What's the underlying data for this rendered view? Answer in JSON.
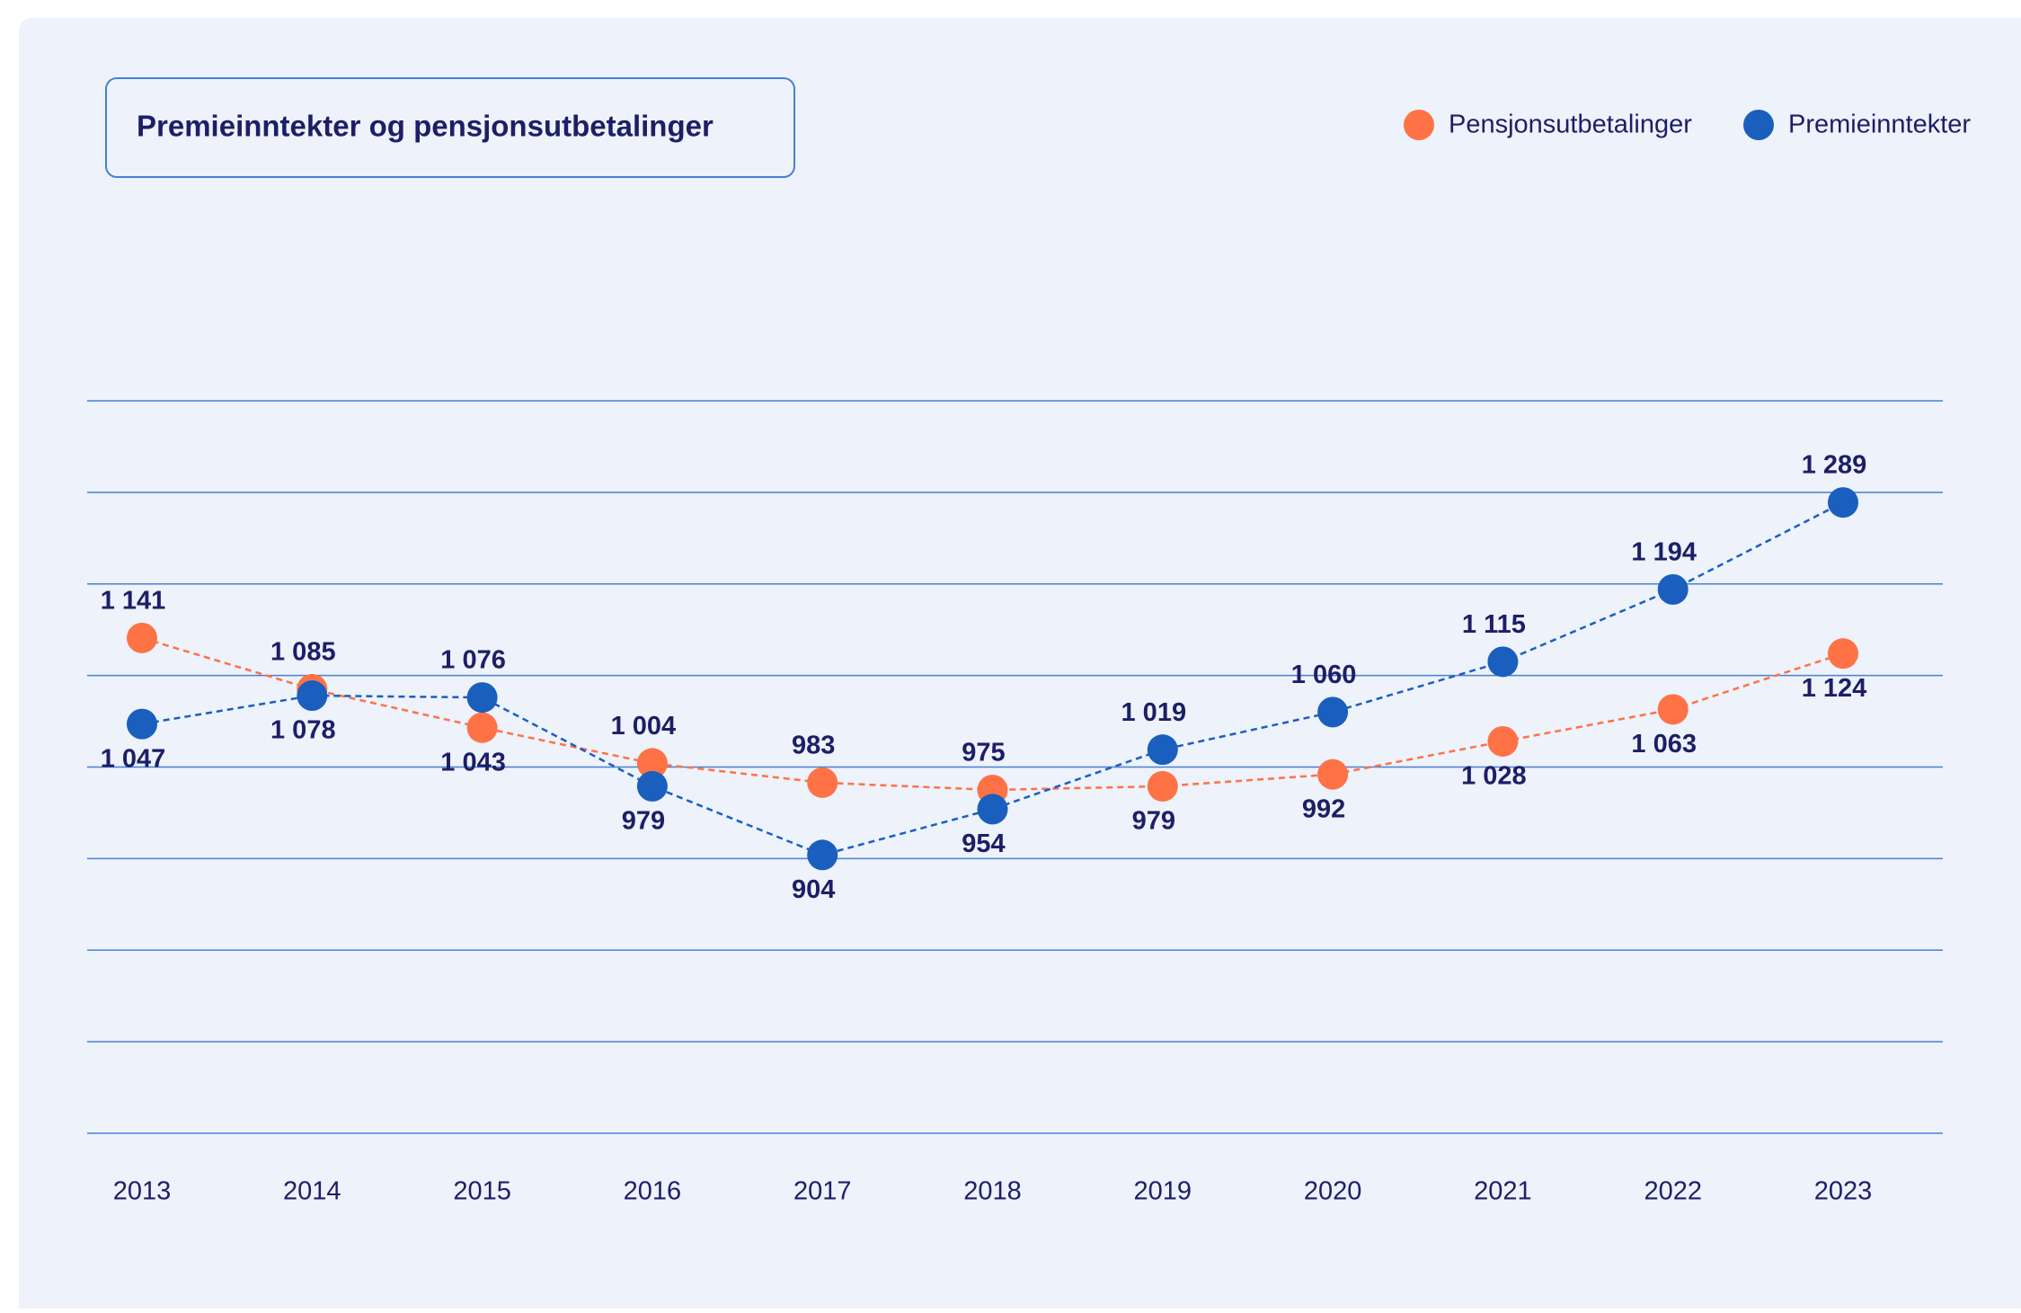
{
  "chart_data": {
    "type": "line",
    "title": "Premieinntekter og pensjonsutbetalinger",
    "categories": [
      "2013",
      "2014",
      "2015",
      "2016",
      "2017",
      "2018",
      "2019",
      "2020",
      "2021",
      "2022",
      "2023"
    ],
    "series": [
      {
        "name": "Pensjonsutbetalinger",
        "color": "#fe7245",
        "values": [
          1141,
          1085,
          1043,
          1004,
          983,
          975,
          979,
          992,
          1028,
          1063,
          1124
        ],
        "value_labels": [
          "1 141",
          "1 085",
          "1 043",
          "1 004",
          "983",
          "975",
          "979",
          "992",
          "1 028",
          "1 063",
          "1 124"
        ]
      },
      {
        "name": "Premieinntekter",
        "color": "#1a5fbe",
        "values": [
          1047,
          1078,
          1076,
          979,
          904,
          954,
          1019,
          1060,
          1115,
          1194,
          1289
        ],
        "value_labels": [
          "1 047",
          "1 078",
          "1 076",
          "979",
          "904",
          "954",
          "1 019",
          "1 060",
          "1 115",
          "1 194",
          "1 289"
        ]
      }
    ],
    "ylim": [
      600,
      1400
    ],
    "yticks": [
      600,
      700,
      800,
      900,
      1000,
      1100,
      1200,
      1300,
      1400
    ],
    "ytick_labels": false,
    "grid": true,
    "dashed_lines": true,
    "legend": "top-right"
  }
}
